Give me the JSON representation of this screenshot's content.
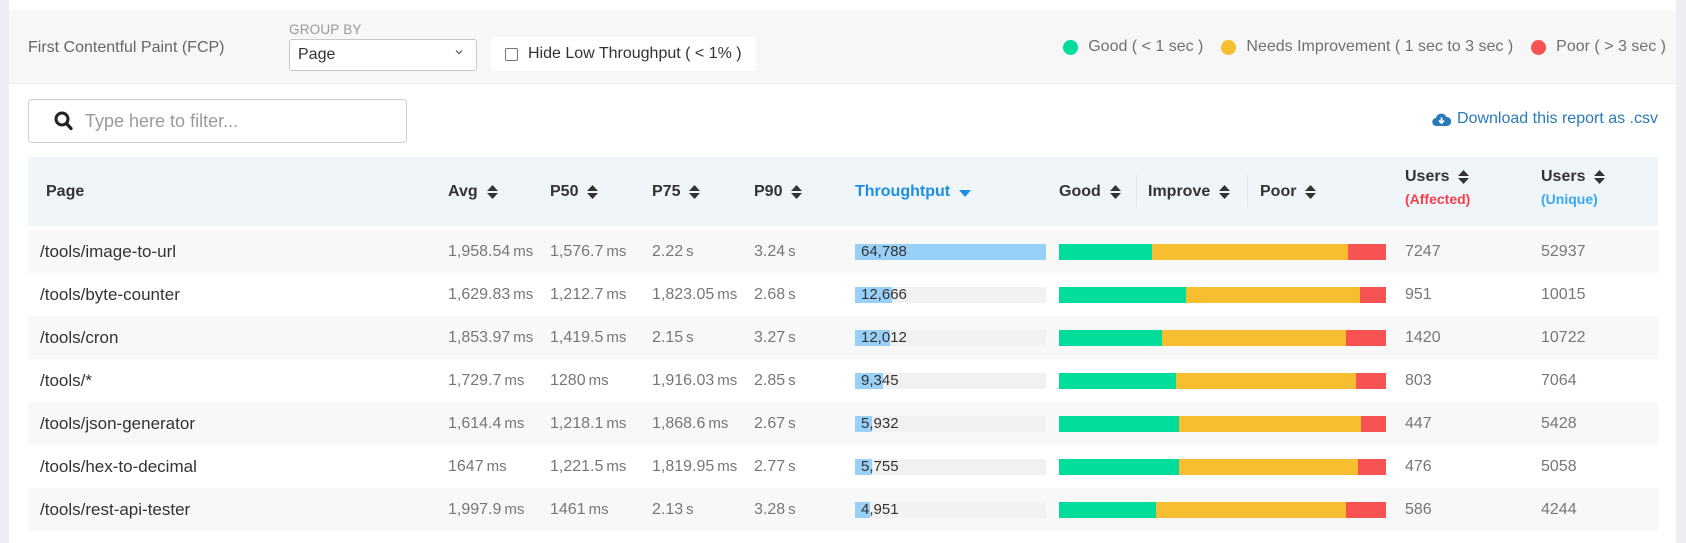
{
  "toolbar": {
    "metric_title": "First Contentful Paint (FCP)",
    "group_by_label": "GROUP BY",
    "group_by_value": "Page",
    "hide_low_label": "Hide Low Throughput ( < 1% )",
    "hide_low_checked": false
  },
  "legend": [
    {
      "label": "Good ( < 1 sec )",
      "color": "#00dd9b"
    },
    {
      "label": "Needs Improvement ( 1 sec to 3 sec )",
      "color": "#f6be30"
    },
    {
      "label": "Poor ( > 3 sec )",
      "color": "#f75352"
    }
  ],
  "search": {
    "placeholder": "Type here to filter...",
    "value": ""
  },
  "download": {
    "label": "Download this report as .csv",
    "icon": "cloud-download-icon"
  },
  "table": {
    "columns": {
      "page": "Page",
      "avg": "Avg",
      "p50": "P50",
      "p75": "P75",
      "p90": "P90",
      "throughput": "Throughtput",
      "good": "Good",
      "improve": "Improve",
      "poor": "Poor",
      "users_affected": "Users",
      "users_affected_sub": "(Affected)",
      "users_unique": "Users",
      "users_unique_sub": "(Unique)"
    },
    "sorted_column": "throughput",
    "sort_direction": "desc",
    "colors": {
      "throughput_active": "#1a8fe3",
      "affected": "#f2404b",
      "unique": "#3aa8f0",
      "throughput_bar": "#99d0f8"
    },
    "max_throughput": 64788,
    "rows": [
      {
        "page": "/tools/image-to-url",
        "avg": "1,958.54",
        "avg_unit": "ms",
        "p50": "1,576.7",
        "p50_unit": "ms",
        "p75": "2.22",
        "p75_unit": "s",
        "p90": "3.24",
        "p90_unit": "s",
        "throughput": "64,788",
        "throughput_value": 64788,
        "good_pct": 28.4,
        "improve_pct": 59.9,
        "poor_pct": 11.7,
        "users_affected": "7247",
        "users_unique": "52937"
      },
      {
        "page": "/tools/byte-counter",
        "avg": "1,629.83",
        "avg_unit": "ms",
        "p50": "1,212.7",
        "p50_unit": "ms",
        "p75": "1,823.05",
        "p75_unit": "ms",
        "p90": "2.68",
        "p90_unit": "s",
        "throughput": "12,666",
        "throughput_value": 12666,
        "good_pct": 38.8,
        "improve_pct": 53.2,
        "poor_pct": 8.0,
        "users_affected": "951",
        "users_unique": "10015"
      },
      {
        "page": "/tools/cron",
        "avg": "1,853.97",
        "avg_unit": "ms",
        "p50": "1,419.5",
        "p50_unit": "ms",
        "p75": "2.15",
        "p75_unit": "s",
        "p90": "3.27",
        "p90_unit": "s",
        "throughput": "12,012",
        "throughput_value": 12012,
        "good_pct": 31.5,
        "improve_pct": 56.3,
        "poor_pct": 12.2,
        "users_affected": "1420",
        "users_unique": "10722"
      },
      {
        "page": "/tools/*",
        "avg": "1,729.7",
        "avg_unit": "ms",
        "p50": "1280",
        "p50_unit": "ms",
        "p75": "1,916.03",
        "p75_unit": "ms",
        "p90": "2.85",
        "p90_unit": "s",
        "throughput": "9,345",
        "throughput_value": 9345,
        "good_pct": 35.8,
        "improve_pct": 55.0,
        "poor_pct": 9.2,
        "users_affected": "803",
        "users_unique": "7064"
      },
      {
        "page": "/tools/json-generator",
        "avg": "1,614.4",
        "avg_unit": "ms",
        "p50": "1,218.1",
        "p50_unit": "ms",
        "p75": "1,868.6",
        "p75_unit": "ms",
        "p90": "2.67",
        "p90_unit": "s",
        "throughput": "5,932",
        "throughput_value": 5932,
        "good_pct": 36.7,
        "improve_pct": 55.7,
        "poor_pct": 7.6,
        "users_affected": "447",
        "users_unique": "5428"
      },
      {
        "page": "/tools/hex-to-decimal",
        "avg": "1647",
        "avg_unit": "ms",
        "p50": "1,221.5",
        "p50_unit": "ms",
        "p75": "1,819.95",
        "p75_unit": "ms",
        "p90": "2.77",
        "p90_unit": "s",
        "throughput": "5,755",
        "throughput_value": 5755,
        "good_pct": 36.7,
        "improve_pct": 54.7,
        "poor_pct": 8.6,
        "users_affected": "476",
        "users_unique": "5058"
      },
      {
        "page": "/tools/rest-api-tester",
        "avg": "1,997.9",
        "avg_unit": "ms",
        "p50": "1461",
        "p50_unit": "ms",
        "p75": "2.13",
        "p75_unit": "s",
        "p90": "3.28",
        "p90_unit": "s",
        "throughput": "4,951",
        "throughput_value": 4951,
        "good_pct": 29.7,
        "improve_pct": 58.1,
        "poor_pct": 12.2,
        "users_affected": "586",
        "users_unique": "4244"
      }
    ]
  }
}
